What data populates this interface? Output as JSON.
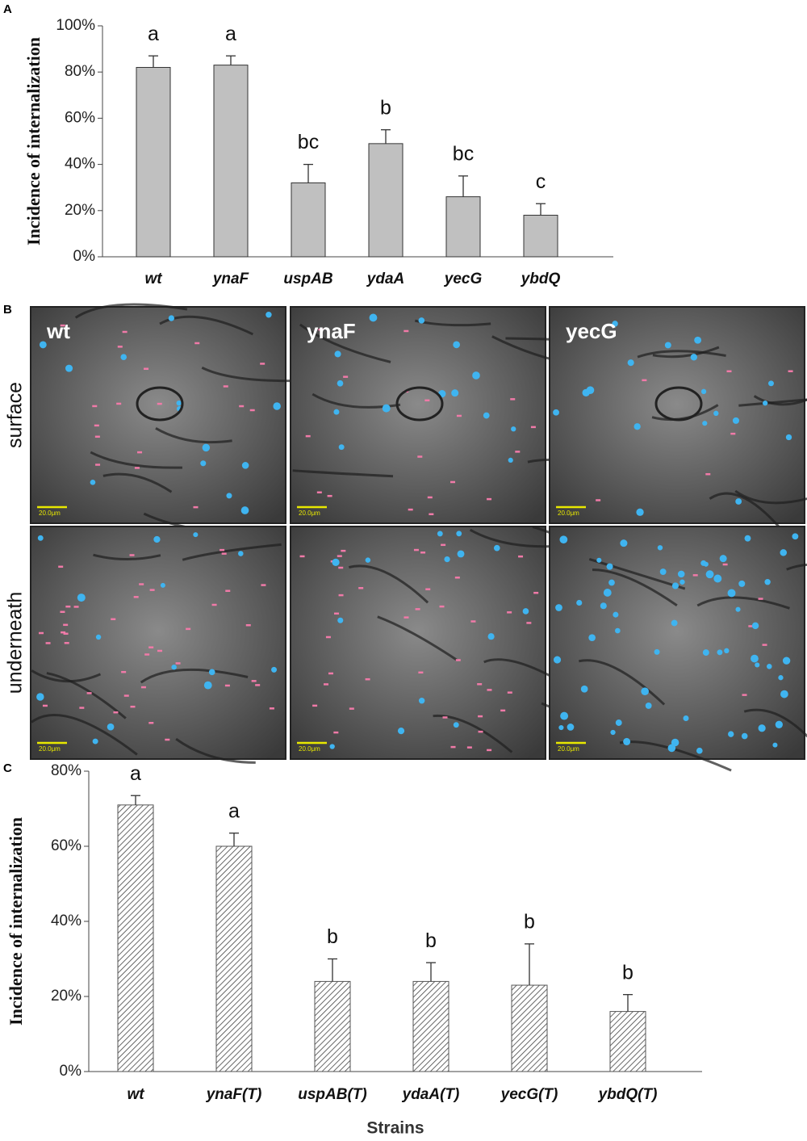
{
  "chart_data": [
    {
      "type": "bar",
      "panel": "A",
      "ylabel": "Incidence of internalization",
      "categories": [
        "wt",
        "ynaF",
        "uspAB",
        "ydaA",
        "yecG",
        "ybdQ"
      ],
      "values": [
        82,
        83,
        32,
        49,
        26,
        18
      ],
      "errors": [
        5,
        4,
        8,
        6,
        9,
        5
      ],
      "annotations": [
        "a",
        "a",
        "bc",
        "b",
        "bc",
        "c"
      ],
      "color": "#c0c0c0",
      "hatch": false,
      "ylim": [
        0,
        100
      ],
      "yticks": [
        {
          "value": 0,
          "label": "0%"
        },
        {
          "value": 20,
          "label": "20%"
        },
        {
          "value": 40,
          "label": "40%"
        },
        {
          "value": 60,
          "label": "60%"
        },
        {
          "value": 80,
          "label": "80%"
        },
        {
          "value": 100,
          "label": "100%"
        }
      ]
    },
    {
      "type": "bar",
      "panel": "C",
      "ylabel": "Incidence of internalization",
      "xlabel": "Strains",
      "categories": [
        "wt",
        "ynaF(T)",
        "uspAB(T)",
        "ydaA(T)",
        "yecG(T)",
        "ybdQ(T)"
      ],
      "values": [
        71,
        60,
        24,
        24,
        23,
        16
      ],
      "errors": [
        2.5,
        3.5,
        6,
        5,
        11,
        4.5
      ],
      "annotations": [
        "a",
        "a",
        "b",
        "b",
        "b",
        "b"
      ],
      "color": "#555555",
      "hatch": true,
      "ylim": [
        0,
        80
      ],
      "yticks": [
        {
          "value": 0,
          "label": "0%"
        },
        {
          "value": 20,
          "label": "20%"
        },
        {
          "value": 40,
          "label": "40%"
        },
        {
          "value": 60,
          "label": "60%"
        },
        {
          "value": 80,
          "label": "80%"
        }
      ]
    }
  ],
  "micrographs": {
    "panel": "B",
    "columns": [
      "wt",
      "ynaF",
      "yecG"
    ],
    "rows": [
      "surface",
      "underneath"
    ],
    "scale_bar": "20.0μm"
  }
}
